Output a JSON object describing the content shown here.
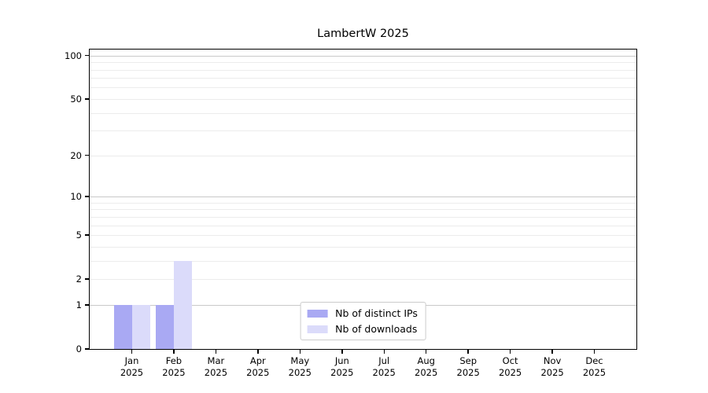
{
  "chart_data": {
    "type": "bar",
    "title": "LambertW 2025",
    "categories": [
      "Jan 2025",
      "Feb 2025",
      "Mar 2025",
      "Apr 2025",
      "May 2025",
      "Jun 2025",
      "Jul 2025",
      "Aug 2025",
      "Sep 2025",
      "Oct 2025",
      "Nov 2025",
      "Dec 2025"
    ],
    "series": [
      {
        "name": "Nb of distinct IPs",
        "color": "#a9a9f3",
        "values": [
          1,
          1,
          0,
          0,
          0,
          0,
          0,
          0,
          0,
          0,
          0,
          0
        ]
      },
      {
        "name": "Nb of downloads",
        "color": "#dbdbfa",
        "values": [
          1,
          3,
          0,
          0,
          0,
          0,
          0,
          0,
          0,
          0,
          0,
          0
        ]
      }
    ],
    "xlabel": "",
    "ylabel": "",
    "yscale": "log1p",
    "ylim": [
      0,
      110
    ],
    "yticks": [
      0,
      1,
      2,
      5,
      10,
      20,
      50,
      100
    ],
    "major_gridlines": [
      1,
      10,
      100
    ],
    "minor_gridlines": [
      2,
      3,
      4,
      5,
      6,
      7,
      8,
      9,
      20,
      30,
      40,
      50,
      60,
      70,
      80,
      90
    ],
    "grid": true,
    "legend": {
      "position": "lower center"
    },
    "colors": {
      "bar_distinct_ips": "#a9a9f3",
      "bar_downloads": "#dbdbfa",
      "grid_major": "#c9c9c9",
      "grid_minor": "#ececec",
      "frame": "#000000",
      "text": "#000000",
      "legend_border": "#cccccc",
      "background": "#ffffff"
    }
  }
}
